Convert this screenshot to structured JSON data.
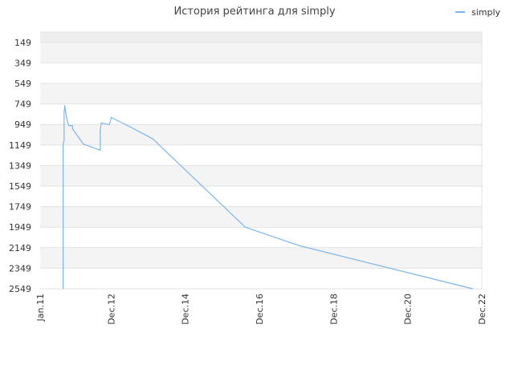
{
  "chart_data": {
    "type": "line",
    "title": "История рейтинга для simply",
    "xlabel": "",
    "ylabel": "",
    "legend_position": "top-right",
    "grid": true,
    "y_inverted": true,
    "ylim": [
      2549,
      49
    ],
    "yticks": [
      149,
      349,
      549,
      749,
      949,
      1149,
      1349,
      1549,
      1749,
      1949,
      2149,
      2349,
      2549
    ],
    "xlim": [
      "2011-01-01",
      "2022-12-01"
    ],
    "xticks": [
      {
        "label": "Jan.11",
        "date": "2011-01-01"
      },
      {
        "label": "Dec.12",
        "date": "2012-12-01"
      },
      {
        "label": "Dec.14",
        "date": "2014-12-01"
      },
      {
        "label": "Dec.16",
        "date": "2016-12-01"
      },
      {
        "label": "Dec.18",
        "date": "2018-12-01"
      },
      {
        "label": "Dec.20",
        "date": "2020-12-01"
      },
      {
        "label": "Dec.22",
        "date": "2022-12-01"
      }
    ],
    "series": [
      {
        "name": "simply",
        "color": "#7cb5ec",
        "points": [
          {
            "x": "2011-08-15",
            "y": 2549
          },
          {
            "x": "2011-08-15",
            "y": 1130
          },
          {
            "x": "2011-08-25",
            "y": 1110
          },
          {
            "x": "2011-08-25",
            "y": 830
          },
          {
            "x": "2011-09-01",
            "y": 766
          },
          {
            "x": "2011-09-10",
            "y": 830
          },
          {
            "x": "2011-09-25",
            "y": 915
          },
          {
            "x": "2011-10-10",
            "y": 960
          },
          {
            "x": "2011-11-15",
            "y": 960
          },
          {
            "x": "2011-11-15",
            "y": 990
          },
          {
            "x": "2012-03-01",
            "y": 1140
          },
          {
            "x": "2012-08-15",
            "y": 1200
          },
          {
            "x": "2012-08-15",
            "y": 1010
          },
          {
            "x": "2012-08-25",
            "y": 935
          },
          {
            "x": "2012-11-10",
            "y": 950
          },
          {
            "x": "2012-11-20",
            "y": 930
          },
          {
            "x": "2012-12-01",
            "y": 880
          },
          {
            "x": "2013-06-01",
            "y": 970
          },
          {
            "x": "2014-01-15",
            "y": 1090
          },
          {
            "x": "2016-07-15",
            "y": 1950
          },
          {
            "x": "2018-01-01",
            "y": 2130
          },
          {
            "x": "2022-09-01",
            "y": 2549
          }
        ]
      }
    ]
  }
}
